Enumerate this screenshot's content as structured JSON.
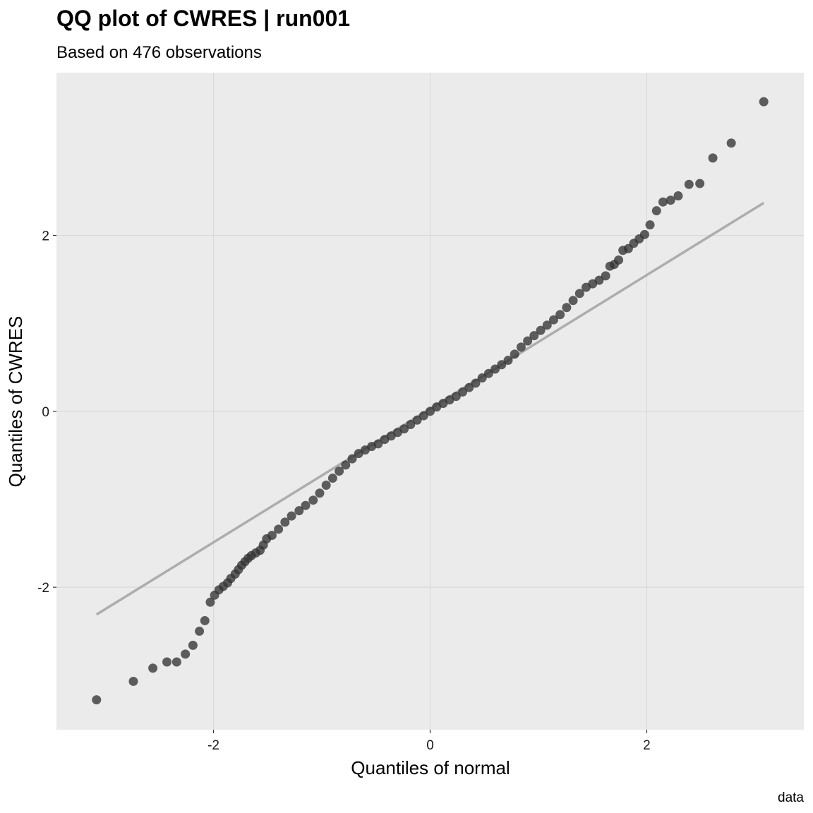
{
  "chart_data": {
    "type": "scatter",
    "title": "QQ plot of CWRES | run001",
    "subtitle": "Based on 476 observations",
    "xlabel": "Quantiles of normal",
    "ylabel": "Quantiles of CWRES",
    "caption": "data",
    "n_observations": 476,
    "xlim": [
      -3.45,
      3.45
    ],
    "ylim": [
      -3.62,
      3.85
    ],
    "x_ticks": [
      -2,
      0,
      2
    ],
    "x_tick_labels": [
      "-2",
      "0",
      "2"
    ],
    "y_ticks": [
      -2,
      0,
      2
    ],
    "y_tick_labels": [
      "-2",
      "0",
      "2"
    ],
    "grid": true,
    "reference_line": {
      "x": [
        -3.08,
        3.08
      ],
      "y": [
        -2.31,
        2.37
      ]
    },
    "series": [
      {
        "points": [
          [
            -3.08,
            -3.28
          ],
          [
            -2.74,
            -3.07
          ],
          [
            -2.56,
            -2.92
          ],
          [
            -2.43,
            -2.85
          ],
          [
            -2.34,
            -2.85
          ],
          [
            -2.26,
            -2.76
          ],
          [
            -2.19,
            -2.66
          ],
          [
            -2.13,
            -2.5
          ],
          [
            -2.08,
            -2.38
          ],
          [
            -2.03,
            -2.17
          ],
          [
            -1.99,
            -2.09
          ],
          [
            -1.95,
            -2.03
          ],
          [
            -1.91,
            -1.99
          ],
          [
            -1.87,
            -1.95
          ],
          [
            -1.84,
            -1.9
          ],
          [
            -1.8,
            -1.85
          ],
          [
            -1.77,
            -1.8
          ],
          [
            -1.74,
            -1.75
          ],
          [
            -1.71,
            -1.71
          ],
          [
            -1.68,
            -1.67
          ],
          [
            -1.65,
            -1.64
          ],
          [
            -1.61,
            -1.61
          ],
          [
            -1.57,
            -1.58
          ],
          [
            -1.54,
            -1.52
          ],
          [
            -1.51,
            -1.45
          ],
          [
            -1.46,
            -1.41
          ],
          [
            -1.4,
            -1.34
          ],
          [
            -1.34,
            -1.26
          ],
          [
            -1.28,
            -1.19
          ],
          [
            -1.21,
            -1.13
          ],
          [
            -1.15,
            -1.07
          ],
          [
            -1.08,
            -1.01
          ],
          [
            -1.02,
            -0.93
          ],
          [
            -0.96,
            -0.84
          ],
          [
            -0.9,
            -0.76
          ],
          [
            -0.84,
            -0.68
          ],
          [
            -0.78,
            -0.61
          ],
          [
            -0.72,
            -0.54
          ],
          [
            -0.66,
            -0.48
          ],
          [
            -0.6,
            -0.44
          ],
          [
            -0.54,
            -0.4
          ],
          [
            -0.48,
            -0.37
          ],
          [
            -0.42,
            -0.32
          ],
          [
            -0.36,
            -0.28
          ],
          [
            -0.3,
            -0.24
          ],
          [
            -0.24,
            -0.2
          ],
          [
            -0.18,
            -0.15
          ],
          [
            -0.12,
            -0.1
          ],
          [
            -0.06,
            -0.05
          ],
          [
            0.0,
            0.0
          ],
          [
            0.06,
            0.05
          ],
          [
            0.12,
            0.09
          ],
          [
            0.18,
            0.13
          ],
          [
            0.24,
            0.17
          ],
          [
            0.3,
            0.22
          ],
          [
            0.36,
            0.27
          ],
          [
            0.42,
            0.32
          ],
          [
            0.48,
            0.38
          ],
          [
            0.54,
            0.43
          ],
          [
            0.6,
            0.48
          ],
          [
            0.66,
            0.53
          ],
          [
            0.72,
            0.58
          ],
          [
            0.78,
            0.65
          ],
          [
            0.84,
            0.73
          ],
          [
            0.9,
            0.8
          ],
          [
            0.96,
            0.86
          ],
          [
            1.02,
            0.92
          ],
          [
            1.08,
            0.98
          ],
          [
            1.14,
            1.04
          ],
          [
            1.2,
            1.1
          ],
          [
            1.26,
            1.18
          ],
          [
            1.32,
            1.26
          ],
          [
            1.38,
            1.34
          ],
          [
            1.44,
            1.41
          ],
          [
            1.5,
            1.45
          ],
          [
            1.56,
            1.49
          ],
          [
            1.62,
            1.54
          ],
          [
            1.66,
            1.65
          ],
          [
            1.7,
            1.67
          ],
          [
            1.74,
            1.72
          ],
          [
            1.78,
            1.83
          ],
          [
            1.83,
            1.85
          ],
          [
            1.88,
            1.91
          ],
          [
            1.93,
            1.96
          ],
          [
            1.98,
            2.01
          ],
          [
            2.03,
            2.12
          ],
          [
            2.09,
            2.28
          ],
          [
            2.15,
            2.38
          ],
          [
            2.22,
            2.4
          ],
          [
            2.29,
            2.45
          ],
          [
            2.39,
            2.58
          ],
          [
            2.49,
            2.59
          ],
          [
            2.61,
            2.88
          ],
          [
            2.78,
            3.05
          ],
          [
            3.08,
            3.52
          ]
        ]
      }
    ],
    "colors": {
      "panel_background": "#ebebeb",
      "grid": "#d9d9d9",
      "point": "#333333",
      "reference_line": "#a6a6a6"
    }
  }
}
